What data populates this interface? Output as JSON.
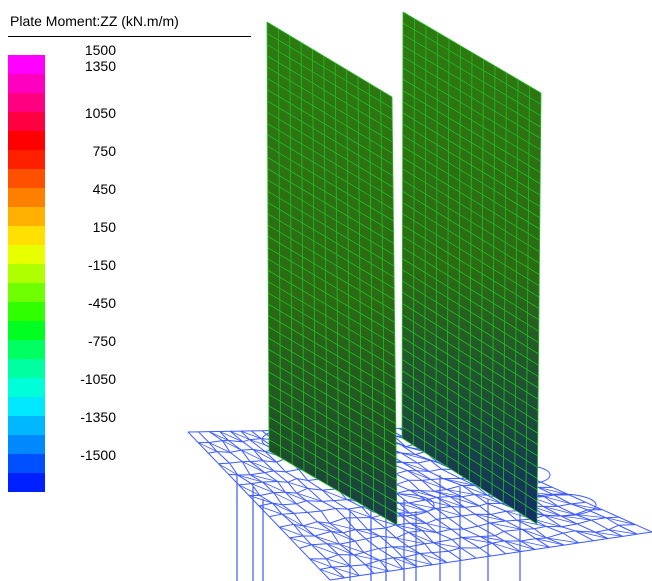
{
  "legend": {
    "title": "Plate Moment:ZZ (kN.m/m)",
    "colors": [
      "#ff00ff",
      "#ff00c0",
      "#ff0080",
      "#ff0040",
      "#ff0000",
      "#ff2000",
      "#ff5000",
      "#ff8000",
      "#ffb000",
      "#ffe000",
      "#e8ff00",
      "#b0ff00",
      "#70ff00",
      "#30ff00",
      "#00ff20",
      "#00ff60",
      "#00ffa0",
      "#00ffd8",
      "#00e8ff",
      "#00b8ff",
      "#0088ff",
      "#0050ff",
      "#0020ff"
    ],
    "ticks": [
      "1500",
      "1350",
      "1050",
      "750",
      "450",
      "150",
      "-150",
      "-450",
      "-750",
      "-1050",
      "-1350",
      "-1500"
    ]
  },
  "model": {
    "wall_color": "#2a6e17",
    "wall_mesh_color": "#1fbf1f",
    "slab_mesh_color": "#3c5aff"
  }
}
